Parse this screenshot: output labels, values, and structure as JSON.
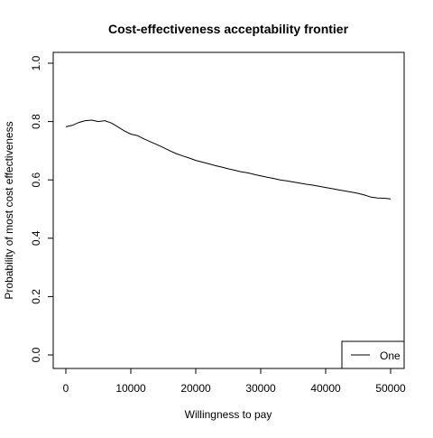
{
  "chart_data": {
    "type": "line",
    "title": "Cost-effectiveness acceptability frontier",
    "xlabel": "Willingness to pay",
    "ylabel": "Probability of most cost effectiveness",
    "xlim": [
      0,
      50000
    ],
    "ylim": [
      0,
      1
    ],
    "xticks": [
      "0",
      "10000",
      "20000",
      "30000",
      "40000",
      "50000"
    ],
    "yticks": [
      "0.0",
      "0.2",
      "0.4",
      "0.6",
      "0.8",
      "1.0"
    ],
    "grid": false,
    "legend": {
      "placement": "bottom-right",
      "entries": [
        "One"
      ]
    },
    "series": [
      {
        "name": "One",
        "color": "#000000",
        "x": [
          0,
          1000,
          2000,
          3000,
          4000,
          5000,
          6000,
          7000,
          8000,
          9000,
          10000,
          11000,
          12000,
          13000,
          14000,
          15000,
          16000,
          17000,
          18000,
          19000,
          20000,
          21000,
          22000,
          23000,
          24000,
          25000,
          26000,
          27000,
          28000,
          29000,
          30000,
          31000,
          32000,
          33000,
          34000,
          35000,
          36000,
          37000,
          38000,
          39000,
          40000,
          41000,
          42000,
          43000,
          44000,
          45000,
          46000,
          47000,
          48000,
          49000,
          50000
        ],
        "y": [
          0.782,
          0.787,
          0.797,
          0.803,
          0.805,
          0.8,
          0.803,
          0.795,
          0.782,
          0.768,
          0.757,
          0.752,
          0.741,
          0.731,
          0.721,
          0.711,
          0.7,
          0.69,
          0.682,
          0.675,
          0.667,
          0.661,
          0.655,
          0.649,
          0.644,
          0.638,
          0.633,
          0.628,
          0.624,
          0.619,
          0.614,
          0.609,
          0.605,
          0.6,
          0.597,
          0.593,
          0.589,
          0.585,
          0.582,
          0.578,
          0.574,
          0.57,
          0.566,
          0.562,
          0.558,
          0.554,
          0.548,
          0.541,
          0.538,
          0.537,
          0.535
        ]
      }
    ]
  }
}
